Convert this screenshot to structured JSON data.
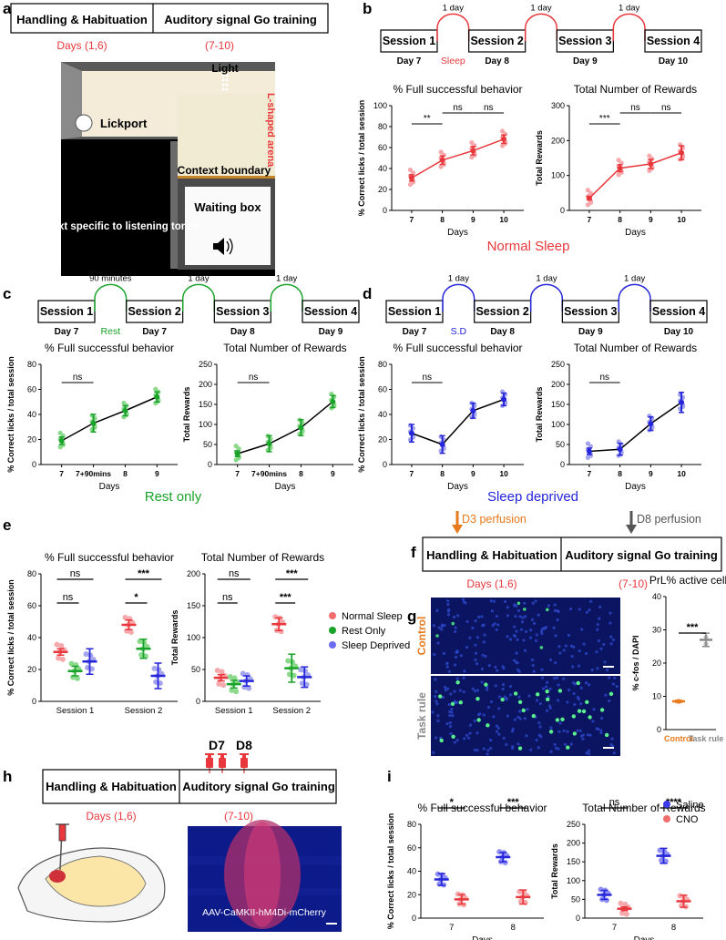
{
  "panels": {
    "a": {
      "letter": "a",
      "timeline": [
        "Handling & Habituation",
        "Auditory signal Go training"
      ],
      "days": [
        "Days (1,6)",
        "(7-10)"
      ],
      "photo_labels": {
        "light": "Light",
        "arena": "L-shaped arena",
        "lickport": "Lickport",
        "context_boundary": "Context boundary",
        "context_specific": "Context specific to listening tones",
        "waiting_box": "Waiting box"
      }
    },
    "b": {
      "letter": "b",
      "sessions": [
        "Session 1",
        "Session 2",
        "Session 3",
        "Session 4"
      ],
      "days": [
        "Day 7",
        "Day 8",
        "Day 9",
        "Day 10"
      ],
      "gap_labels": [
        "1 day",
        "1 day",
        "1 day"
      ],
      "break_label": "Sleep",
      "caption": "Normal Sleep",
      "color": "#e8383d"
    },
    "c": {
      "letter": "c",
      "sessions": [
        "Session 1",
        "Session 2",
        "Session 3",
        "Session 4"
      ],
      "days": [
        "Day 7",
        "Day 7",
        "Day 8",
        "Day 9"
      ],
      "gap_labels": [
        "90 minutes",
        "1 day",
        "1 day"
      ],
      "break_label": "Rest",
      "caption": "Rest only",
      "color": "#1aa32a"
    },
    "d": {
      "letter": "d",
      "sessions": [
        "Session 1",
        "Session 2",
        "Session 3",
        "Session 4"
      ],
      "days": [
        "Day 7",
        "Day 8",
        "Day 9",
        "Day 10"
      ],
      "gap_labels": [
        "1 day",
        "1 day",
        "1 day"
      ],
      "break_label": "S.D",
      "caption": "Sleep deprived",
      "color": "#2525d9"
    },
    "e": {
      "letter": "e",
      "legend": [
        "Normal Sleep",
        "Rest Only",
        "Sleep Deprived"
      ],
      "legend_colors": [
        "#f06d6d",
        "#1aa32a",
        "#6c6cf0"
      ]
    },
    "f": {
      "letter": "f",
      "arrows": [
        "D3 perfusion",
        "D8 perfusion"
      ],
      "timeline": [
        "Handling & Habituation",
        "Auditory signal Go training"
      ],
      "days": [
        "Days (1,6)",
        "(7-10)"
      ]
    },
    "g": {
      "letter": "g",
      "image_labels": [
        "Control",
        "Task rule"
      ]
    },
    "h": {
      "letter": "h",
      "injection_days": [
        "D7",
        "D8"
      ],
      "timeline": [
        "Handling & Habituation",
        "Auditory signal Go training"
      ],
      "days": [
        "Days (1,6)",
        "(7-10)"
      ],
      "virus_label": "AAV-CaMKII-hM4Di-mCherry"
    },
    "i": {
      "letter": "i",
      "legend": [
        "Saline",
        "CNO"
      ],
      "legend_colors": [
        "#3b3bea",
        "#f06d6d"
      ]
    }
  },
  "chart_data": [
    {
      "id": "b1",
      "type": "line",
      "title": "% Full successful behavior",
      "ylabel": "% Correct licks / total session",
      "xlabel": "Days",
      "categories": [
        "7",
        "8",
        "9",
        "10"
      ],
      "ylim": [
        0,
        100
      ],
      "yticks": [
        0,
        20,
        40,
        60,
        80,
        100
      ],
      "color": "#e8383d",
      "point_color": "#f6a9ac",
      "series": [
        {
          "name": "Normal Sleep",
          "values": [
            31,
            48,
            57,
            68
          ],
          "errors": [
            3,
            4,
            4,
            4
          ]
        }
      ],
      "significance": [
        {
          "from": 0,
          "to": 1,
          "label": "**"
        },
        {
          "from": 1,
          "to": 2,
          "label": "ns"
        },
        {
          "from": 2,
          "to": 3,
          "label": "ns"
        }
      ]
    },
    {
      "id": "b2",
      "type": "line",
      "title": "Total Number of Rewards",
      "ylabel": "Total Rewards",
      "xlabel": "Days",
      "categories": [
        "7",
        "8",
        "9",
        "10"
      ],
      "ylim": [
        0,
        300
      ],
      "yticks": [
        0,
        100,
        200,
        300
      ],
      "color": "#e8383d",
      "point_color": "#f6a9ac",
      "series": [
        {
          "name": "Normal Sleep",
          "values": [
            35,
            121,
            133,
            165
          ],
          "errors": [
            5,
            10,
            13,
            20
          ]
        }
      ],
      "significance": [
        {
          "from": 0,
          "to": 1,
          "label": "***"
        },
        {
          "from": 1,
          "to": 2,
          "label": "ns"
        },
        {
          "from": 2,
          "to": 3,
          "label": "ns"
        }
      ]
    },
    {
      "id": "c1",
      "type": "line",
      "title": "% Full successful behavior",
      "ylabel": "% Correct licks / total session",
      "xlabel": "Days",
      "categories": [
        "7",
        "7+90mins",
        "8",
        "9"
      ],
      "ylim": [
        0,
        80
      ],
      "yticks": [
        0,
        20,
        40,
        60,
        80
      ],
      "color": "#000000",
      "point_color": "#8bd98b",
      "marker_color": "#1aa32a",
      "series": [
        {
          "name": "Rest only",
          "values": [
            19,
            33,
            43,
            54
          ],
          "errors": [
            3,
            7,
            4,
            4
          ]
        }
      ],
      "significance": [
        {
          "from": 0,
          "to": 1,
          "label": "ns"
        }
      ]
    },
    {
      "id": "c2",
      "type": "line",
      "title": "Total Number of Rewards",
      "ylabel": "Total Rewards",
      "xlabel": "Days",
      "categories": [
        "7",
        "7+90mins",
        "8",
        "9"
      ],
      "ylim": [
        0,
        250
      ],
      "yticks": [
        0,
        50,
        100,
        150,
        200,
        250
      ],
      "color": "#000000",
      "point_color": "#8bd98b",
      "marker_color": "#1aa32a",
      "series": [
        {
          "name": "Rest only",
          "values": [
            27,
            52,
            92,
            157
          ],
          "errors": [
            7,
            20,
            20,
            15
          ]
        }
      ],
      "significance": [
        {
          "from": 0,
          "to": 1,
          "label": "ns"
        }
      ]
    },
    {
      "id": "d1",
      "type": "line",
      "title": "% Full successful behavior",
      "ylabel": "% Correct licks / total session",
      "xlabel": "Days",
      "categories": [
        "7",
        "8",
        "9",
        "10"
      ],
      "ylim": [
        0,
        80
      ],
      "yticks": [
        0,
        20,
        40,
        60,
        80
      ],
      "color": "#000000",
      "point_color": "#a5a5ee",
      "marker_color": "#2525d9",
      "series": [
        {
          "name": "Sleep deprived",
          "values": [
            25,
            16,
            43,
            52
          ],
          "errors": [
            7,
            7,
            6,
            5
          ]
        }
      ],
      "significance": [
        {
          "from": 0,
          "to": 1,
          "label": "ns"
        }
      ]
    },
    {
      "id": "d2",
      "type": "line",
      "title": "Total Number of Rewards",
      "ylabel": "Total Rewards",
      "xlabel": "Days",
      "categories": [
        "7",
        "8",
        "9",
        "10"
      ],
      "ylim": [
        0,
        250
      ],
      "yticks": [
        0,
        50,
        100,
        150,
        200,
        250
      ],
      "color": "#000000",
      "point_color": "#a5a5ee",
      "marker_color": "#2525d9",
      "series": [
        {
          "name": "Sleep deprived",
          "values": [
            33,
            38,
            102,
            155
          ],
          "errors": [
            8,
            15,
            17,
            25
          ]
        }
      ],
      "significance": [
        {
          "from": 0,
          "to": 1,
          "label": "ns"
        }
      ]
    },
    {
      "id": "e1",
      "type": "scatter",
      "title": "% Full successful behavior",
      "ylabel": "% Correct licks / total session",
      "categories": [
        "Session 1",
        "Session 2"
      ],
      "ylim": [
        0,
        80
      ],
      "yticks": [
        0,
        20,
        40,
        60,
        80
      ],
      "series": [
        {
          "name": "Normal Sleep",
          "values": [
            31,
            48
          ],
          "errors": [
            2,
            3
          ]
        },
        {
          "name": "Rest Only",
          "values": [
            19,
            33
          ],
          "errors": [
            3,
            6
          ]
        },
        {
          "name": "Sleep Deprived",
          "values": [
            25,
            16
          ],
          "errors": [
            8,
            8
          ]
        }
      ],
      "significance": [
        {
          "cat": 0,
          "a": 0,
          "b": 1,
          "label": "ns",
          "level": 1
        },
        {
          "cat": 0,
          "a": 0,
          "b": 2,
          "label": "ns",
          "level": 2
        },
        {
          "cat": 1,
          "a": 0,
          "b": 1,
          "label": "*",
          "level": 1
        },
        {
          "cat": 1,
          "a": 0,
          "b": 2,
          "label": "***",
          "level": 2
        }
      ]
    },
    {
      "id": "e2",
      "type": "scatter",
      "title": "Total Number of Rewards",
      "ylabel": "Total Rewards",
      "categories": [
        "Session 1",
        "Session 2"
      ],
      "ylim": [
        0,
        200
      ],
      "yticks": [
        0,
        50,
        100,
        150,
        200
      ],
      "series": [
        {
          "name": "Normal Sleep",
          "values": [
            37,
            121
          ],
          "errors": [
            5,
            10
          ]
        },
        {
          "name": "Rest Only",
          "values": [
            27,
            52
          ],
          "errors": [
            6,
            22
          ]
        },
        {
          "name": "Sleep Deprived",
          "values": [
            32,
            38
          ],
          "errors": [
            8,
            16
          ]
        }
      ],
      "significance": [
        {
          "cat": 0,
          "a": 0,
          "b": 1,
          "label": "ns",
          "level": 1
        },
        {
          "cat": 0,
          "a": 0,
          "b": 2,
          "label": "ns",
          "level": 2
        },
        {
          "cat": 1,
          "a": 0,
          "b": 1,
          "label": "***",
          "level": 1
        },
        {
          "cat": 1,
          "a": 0,
          "b": 2,
          "label": "***",
          "level": 2
        }
      ]
    },
    {
      "id": "g1",
      "type": "scatter",
      "title": "PrL% active cells",
      "ylabel": "% c-fos / DAPI",
      "categories": [
        "Control",
        "Task rule"
      ],
      "category_colors": [
        "#e87a1e",
        "#888888"
      ],
      "ylim": [
        0,
        40
      ],
      "yticks": [
        0,
        10,
        20,
        30,
        40
      ],
      "series": [
        {
          "name": "PrL",
          "values": [
            8.5,
            27
          ],
          "errors": [
            0.3,
            2
          ]
        }
      ],
      "significance": [
        {
          "a": 0,
          "b": 1,
          "label": "***"
        }
      ]
    },
    {
      "id": "i1",
      "type": "scatter",
      "title": "% Full successful behavior",
      "ylabel": "% Correct licks / total session",
      "xlabel": "Days",
      "categories": [
        "7",
        "8"
      ],
      "ylim": [
        0,
        80
      ],
      "yticks": [
        0,
        20,
        40,
        60,
        80
      ],
      "series": [
        {
          "name": "Saline",
          "values": [
            33,
            52
          ],
          "errors": [
            5,
            4
          ]
        },
        {
          "name": "CNO",
          "values": [
            16,
            18
          ],
          "errors": [
            4,
            6
          ]
        }
      ],
      "significance": [
        {
          "cat": 0,
          "label": "*"
        },
        {
          "cat": 1,
          "label": "***"
        }
      ]
    },
    {
      "id": "i2",
      "type": "scatter",
      "title": "Total Number of Rewards",
      "ylabel": "Total Rewards",
      "xlabel": "Days",
      "categories": [
        "7",
        "8"
      ],
      "ylim": [
        0,
        250
      ],
      "yticks": [
        0,
        50,
        100,
        150,
        200,
        250
      ],
      "series": [
        {
          "name": "Saline",
          "values": [
            62,
            166
          ],
          "errors": [
            12,
            20
          ]
        },
        {
          "name": "CNO",
          "values": [
            25,
            45
          ],
          "errors": [
            5,
            16
          ]
        }
      ],
      "significance": [
        {
          "cat": 0,
          "label": "ns"
        },
        {
          "cat": 1,
          "label": "****"
        }
      ]
    }
  ]
}
